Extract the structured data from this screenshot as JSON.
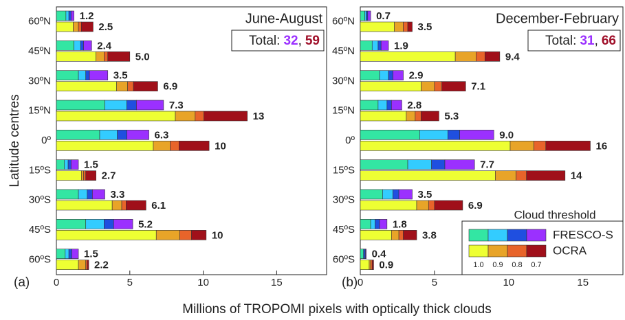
{
  "xlabel": "Millions of TROPOMI pixels with optically thick clouds",
  "ylabel": "Latitude centres",
  "chart_data": [
    {
      "type": "bar",
      "orientation": "horizontal",
      "stacked": true,
      "panel_label": "(a)",
      "period": "June-August",
      "totals_box": {
        "prefix": "Total:",
        "fresco": 32,
        "separator": ",",
        "ocra": 59
      },
      "categories": [
        "60ºN",
        "45ºN",
        "30ºN",
        "15ºN",
        "0º",
        "15ºS",
        "30ºS",
        "45ºS",
        "60ºS"
      ],
      "xlim": [
        0,
        18.4
      ],
      "xticks": [
        0,
        5,
        10,
        15
      ],
      "groups": [
        {
          "label_color": "#9b30ff",
          "series": [
            {
              "color": "#33e6a3",
              "values": [
                0.65,
                1.2,
                1.5,
                3.3,
                2.95,
                0.55,
                1.5,
                2.0,
                0.6
              ]
            },
            {
              "color": "#33ccff",
              "values": [
                0.2,
                0.45,
                0.5,
                1.5,
                1.2,
                0.25,
                0.6,
                1.25,
                0.25
              ]
            },
            {
              "color": "#1f4fe0",
              "values": [
                0.15,
                0.2,
                0.25,
                0.65,
                0.65,
                0.2,
                0.35,
                0.65,
                0.2
              ]
            },
            {
              "color": "#9b30ff",
              "values": [
                0.2,
                0.55,
                1.25,
                1.85,
                1.5,
                0.5,
                0.85,
                1.3,
                0.45
              ]
            }
          ],
          "totals": [
            1.2,
            2.4,
            3.5,
            7.3,
            6.3,
            1.5,
            3.3,
            5.2,
            1.5
          ],
          "total_labels": [
            "1.2",
            "2.4",
            "3.5",
            "7.3",
            "6.3",
            "1.5",
            "3.3",
            "5.2",
            "1.5"
          ]
        },
        {
          "label_color": "#a0102a",
          "series": [
            {
              "color": "#eeff33",
              "values": [
                1.15,
                2.7,
                4.1,
                8.1,
                6.6,
                1.7,
                3.8,
                6.8,
                1.5
              ]
            },
            {
              "color": "#e8a428",
              "values": [
                0.35,
                0.55,
                0.75,
                1.35,
                1.15,
                0.15,
                0.65,
                1.6,
                0.5
              ]
            },
            {
              "color": "#e8642a",
              "values": [
                0.2,
                0.25,
                0.4,
                0.6,
                0.6,
                0.15,
                0.3,
                0.8,
                0.1
              ]
            },
            {
              "color": "#a0101a",
              "values": [
                0.8,
                1.5,
                1.65,
                2.95,
                2.05,
                0.7,
                1.35,
                1.0,
                0.1
              ]
            }
          ],
          "totals": [
            2.5,
            5.0,
            6.9,
            13,
            10.4,
            2.7,
            6.1,
            10.2,
            2.2
          ],
          "total_labels": [
            "2.5",
            "5.0",
            "6.9",
            "13",
            "10",
            "2.7",
            "6.1",
            "10",
            "2.2"
          ]
        }
      ]
    },
    {
      "type": "bar",
      "orientation": "horizontal",
      "stacked": true,
      "panel_label": "(b)",
      "period": "December-February",
      "totals_box": {
        "prefix": "Total:",
        "fresco": 31,
        "separator": ",",
        "ocra": 66
      },
      "categories": [
        "60ºN",
        "45ºN",
        "30ºN",
        "15ºN",
        "0º",
        "15ºS",
        "30ºS",
        "45ºS",
        "60ºS"
      ],
      "xlim": [
        0,
        17.7
      ],
      "xticks": [
        0,
        5,
        10,
        15
      ],
      "legend": {
        "title": "Cloud threshold",
        "corner": "lower right",
        "threshold_labels": [
          "1.0",
          "0.9",
          "0.8",
          "0.7"
        ]
      },
      "groups": [
        {
          "name": "FRESCO-S",
          "label_color": "#9b30ff",
          "series": [
            {
              "color": "#33e6a3",
              "values": [
                0.3,
                0.8,
                1.3,
                1.2,
                4.0,
                3.2,
                1.5,
                0.7,
                0.2
              ]
            },
            {
              "color": "#33ccff",
              "values": [
                0.1,
                0.4,
                0.6,
                0.6,
                1.9,
                1.6,
                0.7,
                0.3,
                0.05
              ]
            },
            {
              "color": "#1f4fe0",
              "values": [
                0.1,
                0.2,
                0.3,
                0.3,
                0.8,
                0.9,
                0.4,
                0.3,
                0.1
              ]
            },
            {
              "color": "#9b30ff",
              "values": [
                0.2,
                0.5,
                0.7,
                0.7,
                2.3,
                2.0,
                0.9,
                0.5,
                0.05
              ]
            }
          ],
          "totals": [
            0.7,
            1.9,
            2.9,
            2.8,
            9.0,
            7.7,
            3.5,
            1.8,
            0.4
          ],
          "total_labels": [
            "0.7",
            "1.9",
            "2.9",
            "2.8",
            "9.0",
            "7.7",
            "3.5",
            "1.8",
            "0.4"
          ]
        },
        {
          "name": "OCRA",
          "label_color": "#a0102a",
          "series": [
            {
              "color": "#eeff33",
              "values": [
                2.3,
                6.4,
                4.1,
                3.1,
                10.1,
                9.1,
                3.8,
                2.1,
                0.6
              ]
            },
            {
              "color": "#e8a428",
              "values": [
                0.6,
                1.4,
                0.9,
                0.6,
                1.6,
                1.4,
                0.8,
                0.5,
                0.1
              ]
            },
            {
              "color": "#e8642a",
              "values": [
                0.3,
                0.6,
                0.5,
                0.4,
                0.8,
                0.7,
                0.4,
                0.3,
                0.1
              ]
            },
            {
              "color": "#a0101a",
              "values": [
                0.3,
                1.0,
                1.6,
                1.2,
                3.0,
                2.6,
                1.9,
                0.9,
                0.1
              ]
            }
          ],
          "totals": [
            3.5,
            9.4,
            7.1,
            5.3,
            15.5,
            13.8,
            6.9,
            3.8,
            0.9
          ],
          "total_labels": [
            "3.5",
            "9.4",
            "7.1",
            "5.3",
            "16",
            "14",
            "6.9",
            "3.8",
            "0.9"
          ]
        }
      ]
    }
  ]
}
